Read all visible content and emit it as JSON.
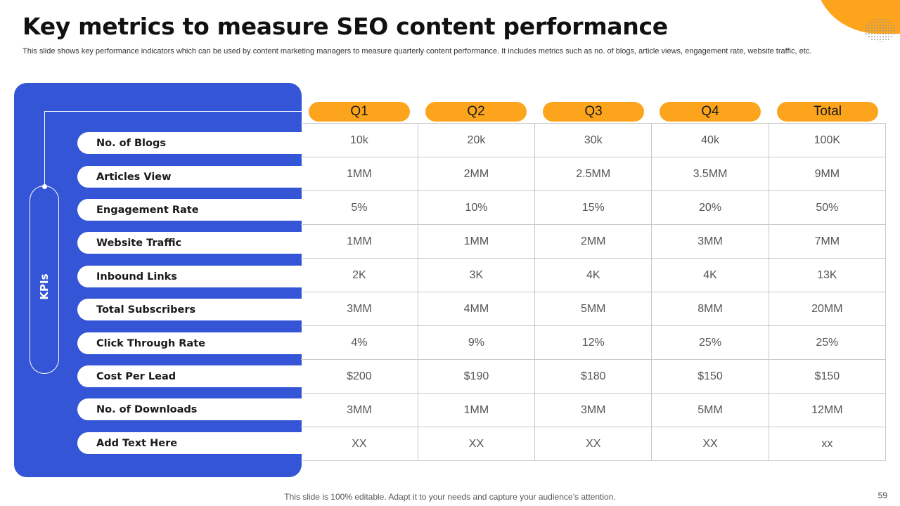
{
  "title": "Key metrics to measure SEO content performance",
  "subtitle": "This slide shows key performance indicators which can be used by content marketing managers to measure quarterly content performance. It includes metrics such as no. of blogs, article views, engagement rate, website traffic, etc.",
  "kpi_label": "KPIs",
  "columns": [
    "Q1",
    "Q2",
    "Q3",
    "Q4",
    "Total"
  ],
  "rows": [
    {
      "label": "No. of Blogs",
      "values": [
        "10k",
        "20k",
        "30k",
        "40k",
        "100K"
      ]
    },
    {
      "label": "Articles View",
      "values": [
        "1MM",
        "2MM",
        "2.5MM",
        "3.5MM",
        "9MM"
      ]
    },
    {
      "label": "Engagement Rate",
      "values": [
        "5%",
        "10%",
        "15%",
        "20%",
        "50%"
      ]
    },
    {
      "label": "Website Traffic",
      "values": [
        "1MM",
        "1MM",
        "2MM",
        "3MM",
        "7MM"
      ]
    },
    {
      "label": "Inbound Links",
      "values": [
        "2K",
        "3K",
        "4K",
        "4K",
        "13K"
      ]
    },
    {
      "label": "Total Subscribers",
      "values": [
        "3MM",
        "4MM",
        "5MM",
        "8MM",
        "20MM"
      ]
    },
    {
      "label": "Click Through Rate",
      "values": [
        "4%",
        "9%",
        "12%",
        "25%",
        "25%"
      ]
    },
    {
      "label": "Cost Per Lead",
      "values": [
        "$200",
        "$190",
        "$180",
        "$150",
        "$150"
      ]
    },
    {
      "label": "No. of Downloads",
      "values": [
        "3MM",
        "1MM",
        "3MM",
        "5MM",
        "12MM"
      ]
    },
    {
      "label": "Add Text Here",
      "values": [
        "XX",
        "XX",
        "XX",
        "XX",
        "xx"
      ]
    }
  ],
  "footer": "This slide is 100% editable. Adapt it to your needs and capture your audience’s attention.",
  "page_number": "59",
  "colors": {
    "accent_blue": "#3355d6",
    "accent_orange": "#fca51c"
  }
}
